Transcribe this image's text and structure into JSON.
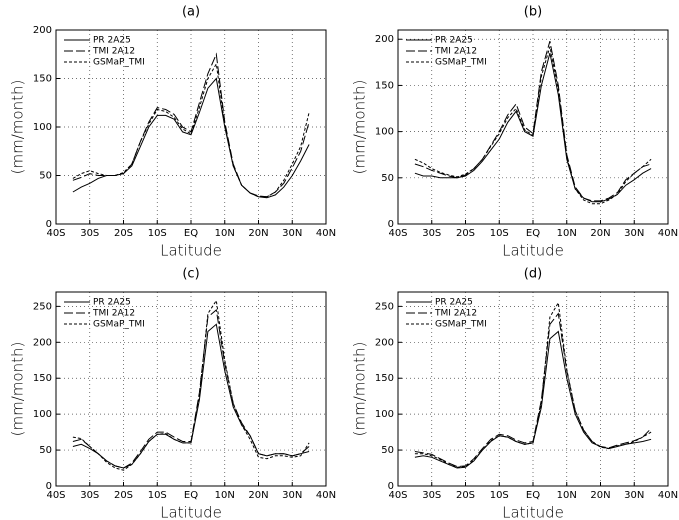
{
  "chart_data": [
    {
      "type": "line",
      "title": "(a)",
      "x_label": "Latitude",
      "y_label": "(mm/month)",
      "x": [
        -35,
        -32.5,
        -30,
        -27.5,
        -25,
        -22.5,
        -20,
        -17.5,
        -15,
        -12.5,
        -10,
        -7.5,
        -5,
        -2.5,
        0,
        2.5,
        5,
        7.5,
        10,
        12.5,
        15,
        17.5,
        20,
        22.5,
        25,
        27.5,
        30,
        32.5,
        35
      ],
      "xlim": [
        -40,
        40
      ],
      "ylim": [
        0,
        200
      ],
      "xticks": [
        {
          "value": -40,
          "label": "40S"
        },
        {
          "value": -30,
          "label": "30S"
        },
        {
          "value": -20,
          "label": "20S"
        },
        {
          "value": -10,
          "label": "10S"
        },
        {
          "value": 0,
          "label": "EQ"
        },
        {
          "value": 10,
          "label": "10N"
        },
        {
          "value": 20,
          "label": "20N"
        },
        {
          "value": 30,
          "label": "30N"
        },
        {
          "value": 40,
          "label": "40N"
        }
      ],
      "yticks": [
        0,
        50,
        100,
        150,
        200
      ],
      "grid": true,
      "legend": "upper left",
      "series": [
        {
          "name": "PR 2A25",
          "color": "#000000",
          "style": "solid",
          "values": [
            33,
            38,
            42,
            47,
            50,
            50,
            52,
            60,
            80,
            100,
            112,
            112,
            108,
            95,
            92,
            115,
            140,
            150,
            100,
            60,
            40,
            32,
            28,
            27,
            30,
            38,
            50,
            65,
            82
          ]
        },
        {
          "name": "TMI 2A12",
          "color": "#000000",
          "style": "longdash",
          "values": [
            45,
            48,
            52,
            50,
            50,
            50,
            52,
            62,
            85,
            105,
            120,
            118,
            113,
            100,
            95,
            125,
            155,
            175,
            105,
            62,
            40,
            32,
            29,
            28,
            33,
            42,
            58,
            75,
            105
          ]
        },
        {
          "name": "GSMaP_TMI",
          "color": "#000000",
          "style": "dash",
          "values": [
            47,
            52,
            55,
            52,
            50,
            50,
            53,
            62,
            85,
            103,
            118,
            116,
            110,
            98,
            93,
            120,
            150,
            165,
            102,
            60,
            40,
            32,
            28,
            28,
            33,
            45,
            62,
            80,
            115
          ]
        }
      ]
    },
    {
      "type": "line",
      "title": "(b)",
      "x_label": "Latitude",
      "y_label": "(mm/month)",
      "x": [
        -35,
        -32.5,
        -30,
        -27.5,
        -25,
        -22.5,
        -20,
        -17.5,
        -15,
        -12.5,
        -10,
        -7.5,
        -5,
        -2.5,
        0,
        2.5,
        5,
        7.5,
        10,
        12.5,
        15,
        17.5,
        20,
        22.5,
        25,
        27.5,
        30,
        32.5,
        35
      ],
      "xlim": [
        -40,
        40
      ],
      "ylim": [
        0,
        210
      ],
      "xticks": [
        {
          "value": -40,
          "label": "40S"
        },
        {
          "value": -30,
          "label": "30S"
        },
        {
          "value": -20,
          "label": "20S"
        },
        {
          "value": -10,
          "label": "10S"
        },
        {
          "value": 0,
          "label": "EQ"
        },
        {
          "value": 10,
          "label": "10N"
        },
        {
          "value": 20,
          "label": "20N"
        },
        {
          "value": 30,
          "label": "30N"
        },
        {
          "value": 40,
          "label": "40N"
        }
      ],
      "yticks": [
        0,
        50,
        100,
        150,
        200
      ],
      "grid": true,
      "legend": "upper left",
      "series": [
        {
          "name": "PR 2A25",
          "color": "#000000",
          "style": "solid",
          "values": [
            55,
            52,
            52,
            50,
            50,
            50,
            52,
            58,
            68,
            80,
            92,
            110,
            122,
            100,
            95,
            150,
            185,
            140,
            70,
            38,
            28,
            24,
            24,
            27,
            32,
            42,
            48,
            55,
            60
          ]
        },
        {
          "name": "TMI 2A12",
          "color": "#000000",
          "style": "longdash",
          "values": [
            65,
            62,
            58,
            55,
            52,
            50,
            53,
            60,
            70,
            85,
            100,
            118,
            130,
            105,
            98,
            165,
            198,
            150,
            75,
            40,
            28,
            25,
            25,
            28,
            34,
            48,
            55,
            62,
            65
          ]
        },
        {
          "name": "GSMaP_TMI",
          "color": "#000000",
          "style": "dash",
          "values": [
            70,
            66,
            60,
            56,
            53,
            51,
            54,
            60,
            70,
            84,
            98,
            115,
            125,
            102,
            96,
            160,
            192,
            145,
            72,
            38,
            26,
            22,
            22,
            26,
            32,
            46,
            55,
            62,
            70
          ]
        }
      ]
    },
    {
      "type": "line",
      "title": "(c)",
      "x_label": "Latitude",
      "y_label": "(mm/month)",
      "x": [
        -35,
        -32.5,
        -30,
        -27.5,
        -25,
        -22.5,
        -20,
        -17.5,
        -15,
        -12.5,
        -10,
        -7.5,
        -5,
        -2.5,
        0,
        2.5,
        5,
        7.5,
        10,
        12.5,
        15,
        17.5,
        20,
        22.5,
        25,
        27.5,
        30,
        32.5,
        35
      ],
      "xlim": [
        -40,
        40
      ],
      "ylim": [
        0,
        270
      ],
      "xticks": [
        {
          "value": -40,
          "label": "40S"
        },
        {
          "value": -30,
          "label": "30S"
        },
        {
          "value": -20,
          "label": "20S"
        },
        {
          "value": -10,
          "label": "10S"
        },
        {
          "value": 0,
          "label": "EQ"
        },
        {
          "value": 10,
          "label": "10N"
        },
        {
          "value": 20,
          "label": "20N"
        },
        {
          "value": 30,
          "label": "30N"
        },
        {
          "value": 40,
          "label": "40N"
        }
      ],
      "yticks": [
        0,
        50,
        100,
        150,
        200,
        250
      ],
      "grid": true,
      "legend": "upper left",
      "series": [
        {
          "name": "PR 2A25",
          "color": "#000000",
          "style": "solid",
          "values": [
            55,
            58,
            52,
            45,
            35,
            28,
            25,
            30,
            45,
            62,
            72,
            72,
            65,
            60,
            60,
            120,
            215,
            225,
            160,
            110,
            85,
            70,
            45,
            42,
            45,
            45,
            42,
            45,
            48
          ]
        },
        {
          "name": "TMI 2A12",
          "color": "#000000",
          "style": "longdash",
          "values": [
            62,
            65,
            55,
            45,
            35,
            28,
            25,
            32,
            48,
            65,
            75,
            75,
            68,
            62,
            62,
            130,
            235,
            245,
            170,
            115,
            88,
            70,
            45,
            42,
            45,
            45,
            42,
            45,
            55
          ]
        },
        {
          "name": "GSMaP_TMI",
          "color": "#000000",
          "style": "dash",
          "values": [
            68,
            66,
            55,
            45,
            33,
            25,
            22,
            30,
            45,
            62,
            72,
            73,
            65,
            60,
            60,
            125,
            240,
            258,
            175,
            115,
            85,
            65,
            40,
            38,
            42,
            42,
            40,
            42,
            60
          ]
        }
      ]
    },
    {
      "type": "line",
      "title": "(d)",
      "x_label": "Latitude",
      "y_label": "(mm/month)",
      "x": [
        -35,
        -32.5,
        -30,
        -27.5,
        -25,
        -22.5,
        -20,
        -17.5,
        -15,
        -12.5,
        -10,
        -7.5,
        -5,
        -2.5,
        0,
        2.5,
        5,
        7.5,
        10,
        12.5,
        15,
        17.5,
        20,
        22.5,
        25,
        27.5,
        30,
        32.5,
        35
      ],
      "xlim": [
        -40,
        40
      ],
      "ylim": [
        0,
        270
      ],
      "xticks": [
        {
          "value": -40,
          "label": "40S"
        },
        {
          "value": -30,
          "label": "30S"
        },
        {
          "value": -20,
          "label": "20S"
        },
        {
          "value": -10,
          "label": "10S"
        },
        {
          "value": 0,
          "label": "EQ"
        },
        {
          "value": 10,
          "label": "10N"
        },
        {
          "value": 20,
          "label": "20N"
        },
        {
          "value": 30,
          "label": "30N"
        },
        {
          "value": 40,
          "label": "40N"
        }
      ],
      "yticks": [
        0,
        50,
        100,
        150,
        200,
        250
      ],
      "grid": true,
      "legend": "upper left",
      "series": [
        {
          "name": "PR 2A25",
          "color": "#000000",
          "style": "solid",
          "values": [
            40,
            42,
            40,
            35,
            30,
            25,
            26,
            35,
            50,
            62,
            70,
            68,
            62,
            58,
            60,
            110,
            205,
            215,
            150,
            100,
            75,
            60,
            55,
            52,
            55,
            58,
            60,
            62,
            65
          ]
        },
        {
          "name": "TMI 2A12",
          "color": "#000000",
          "style": "longdash",
          "values": [
            48,
            46,
            44,
            38,
            32,
            27,
            28,
            38,
            52,
            65,
            72,
            70,
            64,
            60,
            62,
            120,
            225,
            240,
            160,
            105,
            78,
            62,
            55,
            53,
            57,
            60,
            63,
            68,
            80
          ]
        },
        {
          "name": "GSMaP_TMI",
          "color": "#000000",
          "style": "dash",
          "values": [
            45,
            45,
            42,
            37,
            30,
            26,
            27,
            36,
            50,
            63,
            70,
            68,
            62,
            58,
            60,
            115,
            235,
            255,
            162,
            105,
            78,
            62,
            54,
            52,
            56,
            58,
            62,
            68,
            75
          ]
        }
      ]
    }
  ]
}
